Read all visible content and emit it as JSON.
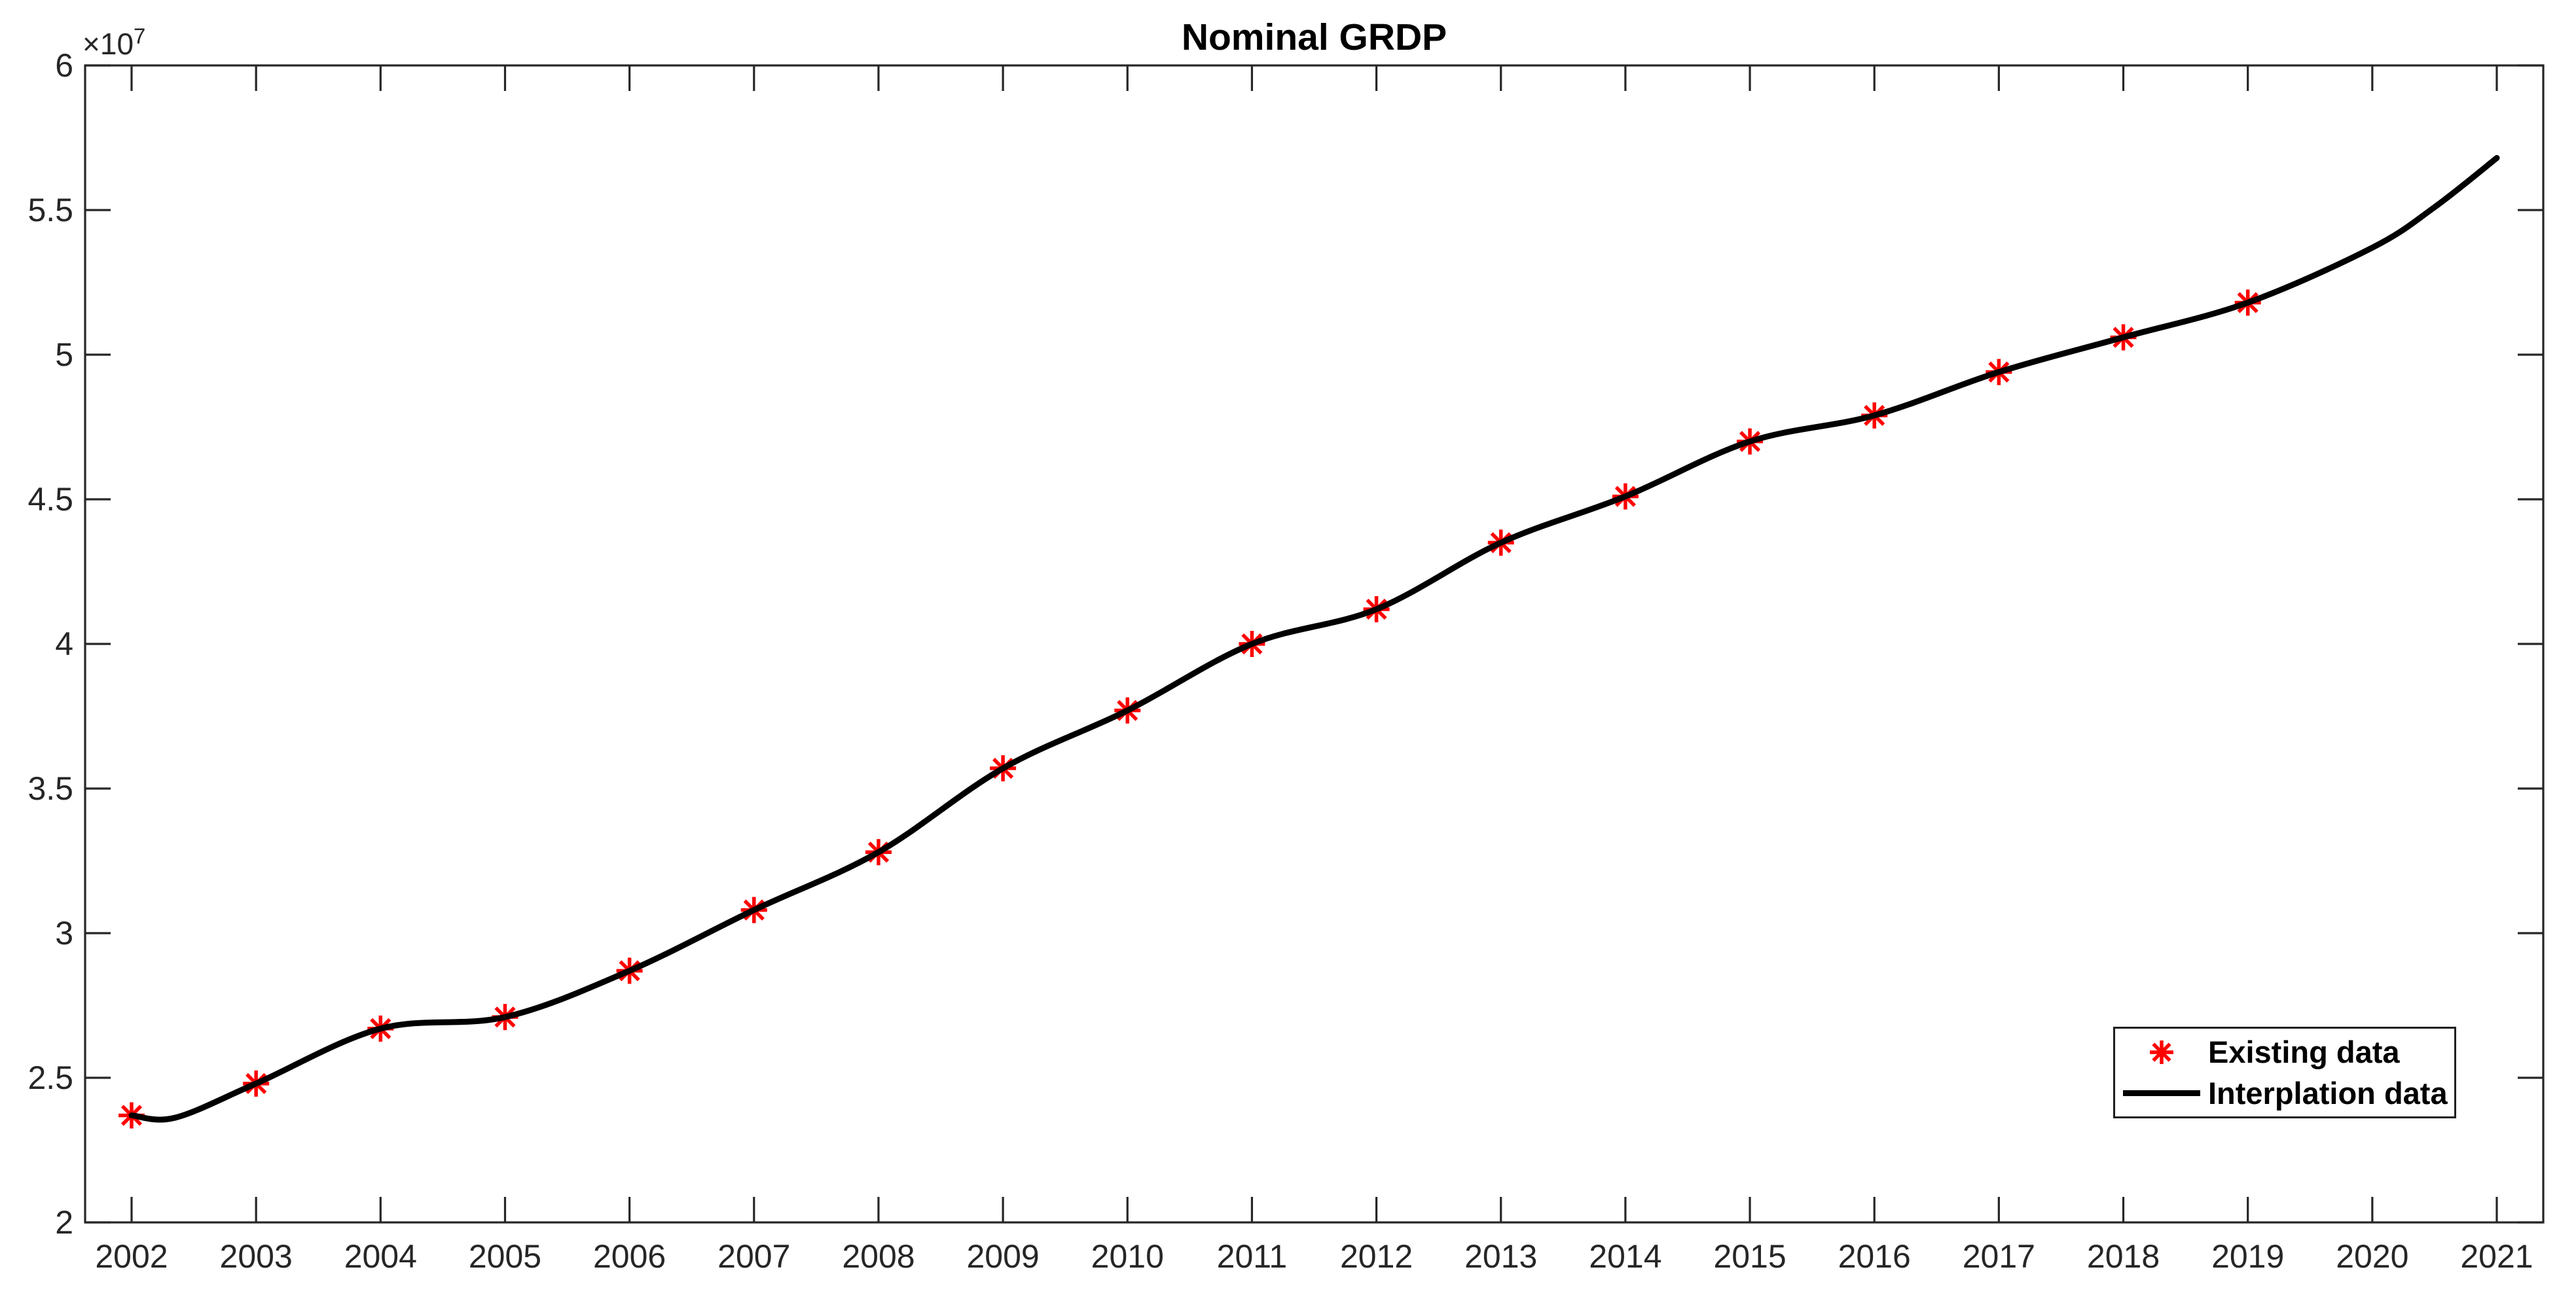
{
  "figure": {
    "background": "#ffffff",
    "axis_color": "#262626",
    "tick_label_color": "#262626",
    "title_color": "#000000"
  },
  "chart_data": {
    "type": "line",
    "title": "Nominal GRDP",
    "xlabel": "",
    "ylabel": "",
    "y_multiplier_base": "×10",
    "y_multiplier_exp": "7",
    "xlim": [
      2001.63,
      2021.37
    ],
    "ylim": [
      20000000,
      60000000
    ],
    "grid": false,
    "box": true,
    "tick_direction": "in",
    "legend_position": "lower-right",
    "xticks": [
      2002,
      2003,
      2004,
      2005,
      2006,
      2007,
      2008,
      2009,
      2010,
      2011,
      2012,
      2013,
      2014,
      2015,
      2016,
      2017,
      2018,
      2019,
      2020,
      2021
    ],
    "yticks": [
      20000000,
      25000000,
      30000000,
      35000000,
      40000000,
      45000000,
      50000000,
      55000000,
      60000000
    ],
    "ytick_labels": [
      "2",
      "2.5",
      "3",
      "3.5",
      "4",
      "4.5",
      "5",
      "5.5",
      "6"
    ],
    "series": [
      {
        "name": "Existing data",
        "type": "scatter",
        "marker": "asterisk",
        "color": "#ff0000",
        "x": [
          2002,
          2003,
          2004,
          2005,
          2006,
          2007,
          2008,
          2009,
          2010,
          2011,
          2012,
          2013,
          2014,
          2015,
          2016,
          2017,
          2018,
          2019
        ],
        "y": [
          23700000,
          24800000,
          26700000,
          27100000,
          28700000,
          30800000,
          32800000,
          35700000,
          37700000,
          40000000,
          41200000,
          43500000,
          45100000,
          47000000,
          47900000,
          49400000,
          50600000,
          51800000
        ]
      },
      {
        "name": "Interplation data",
        "type": "line",
        "color": "#000000",
        "x": [
          2002,
          2002.35,
          2003,
          2004,
          2005,
          2006,
          2007,
          2008,
          2009,
          2010,
          2011,
          2012,
          2013,
          2014,
          2015,
          2016,
          2017,
          2018,
          2019,
          2020,
          2020.5,
          2021
        ],
        "y": [
          23700000,
          23620000,
          24800000,
          26700000,
          27100000,
          28700000,
          30800000,
          32800000,
          35700000,
          37700000,
          40000000,
          41200000,
          43500000,
          45100000,
          47000000,
          47900000,
          49400000,
          50600000,
          51800000,
          53700000,
          55100000,
          56800000
        ]
      }
    ]
  },
  "legend": {
    "items": [
      {
        "label": "Existing data",
        "icon": "red-asterisk"
      },
      {
        "label": "Interplation data",
        "icon": "black-line"
      }
    ]
  }
}
